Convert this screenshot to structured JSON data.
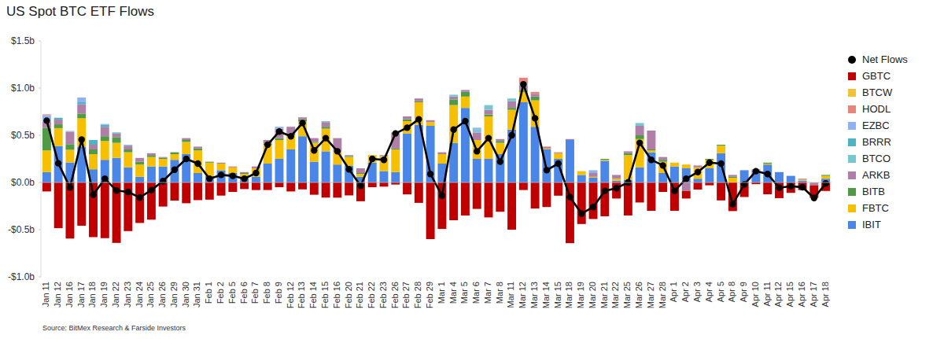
{
  "chart_data": {
    "type": "bar",
    "title": "US Spot BTC ETF Flows",
    "source": "Source: BitMex Research & Farside Investors",
    "stacked": true,
    "grid": false,
    "legend": "right",
    "categories": [
      "Jan 11",
      "Jan 12",
      "Jan 16",
      "Jan 17",
      "Jan 18",
      "Jan 19",
      "Jan 22",
      "Jan 23",
      "Jan 24",
      "Jan 25",
      "Jan 26",
      "Jan 29",
      "Jan 30",
      "Jan 31",
      "Feb 1",
      "Feb 2",
      "Feb 5",
      "Feb 6",
      "Feb 7",
      "Feb 8",
      "Feb 9",
      "Feb 12",
      "Feb 13",
      "Feb 14",
      "Feb 15",
      "Feb 16",
      "Feb 20",
      "Feb 21",
      "Feb 22",
      "Feb 23",
      "Feb 26",
      "Feb 27",
      "Feb 28",
      "Feb 29",
      "Mar 1",
      "Mar 4",
      "Mar 5",
      "Mar 6",
      "Mar 7",
      "Mar 8",
      "Mar 11",
      "Mar 12",
      "Mar 13",
      "Mar 14",
      "Mar 15",
      "Mar 18",
      "Mar 19",
      "Mar 20",
      "Mar 21",
      "Mar 22",
      "Mar 25",
      "Mar 26",
      "Mar 27",
      "Mar 28",
      "Apr 1",
      "Apr 2",
      "Apr 3",
      "Apr 4",
      "Apr 5",
      "Apr 8",
      "Apr 9",
      "Apr 10",
      "Apr 11",
      "Apr 12",
      "Apr 15",
      "Apr 16",
      "Apr 17",
      "Apr 18"
    ],
    "ylim": [
      -1,
      1.5
    ],
    "yticks": [
      {
        "value": -1,
        "label": "-$1.0b"
      },
      {
        "value": -0.5,
        "label": "-$0.5b"
      },
      {
        "value": 0,
        "label": "$0.0b"
      },
      {
        "value": 0.5,
        "label": "$0.5b"
      },
      {
        "value": 1,
        "label": "$1.0b"
      },
      {
        "value": 1.5,
        "label": "$1.5b"
      }
    ],
    "series": [
      {
        "name": "Net Flows",
        "type": "line",
        "color": "#000000",
        "marker": "circle",
        "values": [
          0.655,
          0.203,
          -0.053,
          0.454,
          -0.13,
          0.04,
          -0.086,
          -0.1,
          -0.16,
          -0.08,
          0.015,
          0.136,
          0.25,
          0.2,
          0.04,
          0.08,
          0.07,
          0.04,
          0.1,
          0.4,
          0.54,
          0.49,
          0.63,
          0.34,
          0.47,
          0.33,
          0.14,
          -0.036,
          0.25,
          0.24,
          0.52,
          0.58,
          0.67,
          0.09,
          -0.14,
          0.56,
          0.65,
          0.33,
          0.47,
          0.22,
          0.5,
          1.04,
          0.68,
          0.13,
          0.2,
          -0.154,
          -0.33,
          -0.26,
          -0.09,
          -0.06,
          0.0,
          0.42,
          0.24,
          0.18,
          -0.09,
          0.04,
          0.11,
          0.21,
          0.2,
          -0.23,
          -0.02,
          0.12,
          0.09,
          -0.056,
          -0.04,
          -0.05,
          -0.165,
          -0.01
        ]
      },
      {
        "name": "GBTC",
        "type": "bar",
        "color": "#c00000",
        "values": [
          -0.095,
          -0.484,
          -0.594,
          -0.458,
          -0.579,
          -0.59,
          -0.64,
          -0.515,
          -0.429,
          -0.394,
          -0.255,
          -0.192,
          -0.22,
          -0.187,
          -0.182,
          -0.139,
          -0.1,
          -0.07,
          -0.08,
          -0.08,
          -0.05,
          -0.095,
          -0.073,
          -0.13,
          -0.16,
          -0.161,
          -0.137,
          -0.199,
          -0.05,
          -0.044,
          -0.022,
          -0.126,
          -0.216,
          -0.6,
          -0.492,
          -0.4,
          -0.35,
          -0.28,
          -0.37,
          -0.31,
          -0.5,
          -0.08,
          -0.276,
          -0.26,
          -0.14,
          -0.643,
          -0.44,
          -0.387,
          -0.358,
          -0.17,
          -0.35,
          -0.212,
          -0.3,
          -0.1,
          -0.3,
          -0.08,
          -0.075,
          -0.03,
          -0.19,
          -0.303,
          -0.154,
          -0.018,
          -0.125,
          -0.166,
          -0.11,
          -0.08,
          -0.133,
          -0.09
        ]
      },
      {
        "name": "BTCW",
        "type": "bar",
        "color": "#f1c232",
        "values": [
          0.001,
          0,
          0,
          0,
          0,
          0,
          0,
          0,
          0,
          0,
          0,
          0,
          0,
          0,
          0,
          0,
          0,
          0,
          0,
          0,
          0,
          0,
          0,
          0,
          0,
          0,
          0,
          0,
          0,
          0,
          0,
          0,
          0,
          0,
          0,
          0,
          0,
          0,
          0,
          0,
          0,
          0,
          0,
          0,
          0,
          0,
          0,
          0,
          0,
          0,
          0,
          0,
          0,
          0,
          0,
          0,
          0,
          0,
          0,
          0,
          0,
          0,
          0,
          0,
          0,
          0,
          0,
          0
        ]
      },
      {
        "name": "HODL",
        "type": "bar",
        "color": "#e8857a",
        "values": [
          0.01,
          0,
          0,
          0,
          0,
          0,
          0,
          0,
          0,
          0,
          0,
          0,
          0,
          0,
          0,
          0,
          0,
          0,
          0,
          0,
          0,
          0,
          0,
          0,
          0,
          0,
          0,
          0,
          0,
          0,
          0,
          0,
          0,
          0,
          0,
          0,
          0,
          0,
          0,
          0,
          0,
          0.06,
          0.02,
          0,
          0,
          0,
          0,
          0,
          0,
          0,
          0,
          0,
          0,
          0,
          0,
          0,
          0,
          0,
          0,
          0,
          0,
          0,
          0,
          0,
          0,
          0,
          0,
          0
        ]
      },
      {
        "name": "EZBC",
        "type": "bar",
        "color": "#8db3f2",
        "values": [
          0.05,
          0,
          0.01,
          0.05,
          0,
          0.01,
          0,
          0,
          0,
          0,
          0,
          0,
          0,
          0,
          0,
          0,
          0,
          0,
          0,
          0,
          0.02,
          0,
          0,
          0,
          0,
          0,
          0,
          0,
          0,
          0,
          0,
          0,
          0,
          0,
          0,
          0,
          0,
          0.02,
          0,
          0,
          0,
          0,
          0,
          0,
          0,
          0,
          0,
          0.03,
          0,
          0,
          0,
          0,
          0,
          0,
          0,
          0,
          0,
          0,
          0,
          0,
          0,
          0,
          0,
          0,
          0,
          0,
          0,
          0
        ]
      },
      {
        "name": "BRRR",
        "type": "bar",
        "color": "#4fb3c4",
        "values": [
          0,
          0.02,
          0,
          0.02,
          0.05,
          0.02,
          0.01,
          0,
          0,
          0,
          0,
          0,
          0,
          0,
          0,
          0,
          0,
          0,
          0,
          0,
          0,
          0,
          0,
          0,
          0,
          0,
          0,
          0,
          0,
          0,
          0,
          0,
          0,
          0,
          0,
          0,
          0,
          0,
          0,
          0,
          0,
          0,
          0,
          0,
          0,
          0,
          0,
          0,
          0,
          0,
          0,
          0,
          0,
          0,
          0,
          0,
          0,
          0,
          0,
          0,
          0,
          0,
          0,
          0,
          0,
          0,
          0,
          0
        ]
      },
      {
        "name": "BTCO",
        "type": "bar",
        "color": "#76c7cf",
        "values": [
          0.017,
          0,
          0,
          0,
          0,
          0,
          0,
          0.01,
          0,
          0,
          0,
          0,
          0,
          0,
          0,
          0,
          0,
          0,
          0,
          0,
          0,
          0,
          0,
          0,
          0.01,
          0,
          0,
          0,
          0,
          0,
          0,
          0,
          0,
          0,
          0,
          0.02,
          0,
          0.03,
          0.05,
          0,
          0.03,
          0.02,
          0,
          0,
          0,
          0,
          0,
          0,
          0,
          0,
          0,
          0.03,
          0,
          0,
          0,
          0,
          0,
          0,
          0,
          0,
          0,
          0,
          0,
          0,
          0,
          0,
          0,
          0
        ]
      },
      {
        "name": "ARKB",
        "type": "bar",
        "color": "#b07fa8",
        "values": [
          0.065,
          0.05,
          0.13,
          0.1,
          0.05,
          0.1,
          0.04,
          0.04,
          0.04,
          0.02,
          0.01,
          0,
          0.02,
          0.02,
          0,
          0.01,
          0.01,
          0.01,
          0.02,
          0.04,
          0.1,
          0.07,
          0.02,
          0.04,
          0.05,
          0.13,
          0.01,
          0.05,
          0,
          0.01,
          0.17,
          0.03,
          0.03,
          0.02,
          0.02,
          0.03,
          0.02,
          0.08,
          0.05,
          0.02,
          0.07,
          0.05,
          0.03,
          0.02,
          0.01,
          0.01,
          0,
          0.04,
          0,
          0.04,
          0.02,
          0.1,
          0.2,
          0.03,
          0,
          -0.09,
          0.02,
          0,
          0,
          0.02,
          0,
          0.01,
          0,
          0,
          0,
          0.01,
          -0.03,
          0
        ]
      },
      {
        "name": "BITB",
        "type": "bar",
        "color": "#4e9a45",
        "values": [
          0.24,
          0.04,
          0.06,
          0.05,
          0.05,
          0.05,
          0.06,
          0.03,
          0.03,
          0.02,
          0.01,
          0.02,
          0.02,
          0.02,
          0.01,
          0,
          0,
          0.01,
          0,
          0.01,
          0.02,
          0.02,
          0.02,
          0.01,
          0.02,
          0.01,
          0.01,
          0.01,
          0,
          0,
          0.01,
          0.02,
          0.01,
          0,
          0,
          0.06,
          0.05,
          0,
          0.02,
          0.02,
          0.02,
          0.02,
          0.04,
          0,
          0,
          0,
          0,
          0,
          0.01,
          0,
          0.02,
          0.04,
          0.01,
          0.02,
          0,
          0,
          0,
          0.01,
          0.01,
          0.01,
          0,
          0,
          0.01,
          0,
          0,
          0,
          0,
          0.01
        ]
      },
      {
        "name": "FBTC",
        "type": "bar",
        "color": "#f6c000",
        "values": [
          0.23,
          0.19,
          0.134,
          0.3,
          0.16,
          0.2,
          0.16,
          0.16,
          0.13,
          0.1,
          0.08,
          0.06,
          0.13,
          0.24,
          0.14,
          0.07,
          0.06,
          0.03,
          0.09,
          0.2,
          0.2,
          0.15,
          0.16,
          0.2,
          0.24,
          0.14,
          0.09,
          0.03,
          0.08,
          0.16,
          0.24,
          0.13,
          0.24,
          0.04,
          0.1,
          0.4,
          0.12,
          0.2,
          0.45,
          0.12,
          0.21,
          0.11,
          0.28,
          0.01,
          0.06,
          0,
          0.04,
          0.01,
          0.01,
          0.02,
          0.26,
          0.3,
          0.02,
          0.12,
          0.04,
          0.04,
          0.12,
          0.09,
          0.08,
          0.05,
          0,
          0,
          0.01,
          0,
          0,
          0.01,
          0,
          0.03
        ]
      },
      {
        "name": "IBIT",
        "type": "bar",
        "color": "#4a86e8",
        "values": [
          0.11,
          0.386,
          0.212,
          0.38,
          0.14,
          0.24,
          0.26,
          0.16,
          0.06,
          0.17,
          0.17,
          0.24,
          0.3,
          0.1,
          0.07,
          0.13,
          0.1,
          0.06,
          0.06,
          0.2,
          0.25,
          0.35,
          0.49,
          0.22,
          0.33,
          0.19,
          0.18,
          0.06,
          0.21,
          0.12,
          0.11,
          0.52,
          0.61,
          0.6,
          0.2,
          0.42,
          0.79,
          0.25,
          0.25,
          0.3,
          0.56,
          0.85,
          0.59,
          0.35,
          0.25,
          0.45,
          0.08,
          0.05,
          0.23,
          0.02,
          0.03,
          0.16,
          0.32,
          0.1,
          0.17,
          0.15,
          0.04,
          0.15,
          0.31,
          0,
          0.13,
          0.13,
          0.19,
          0.11,
          0.07,
          0.02,
          0,
          0.04
        ]
      }
    ]
  }
}
